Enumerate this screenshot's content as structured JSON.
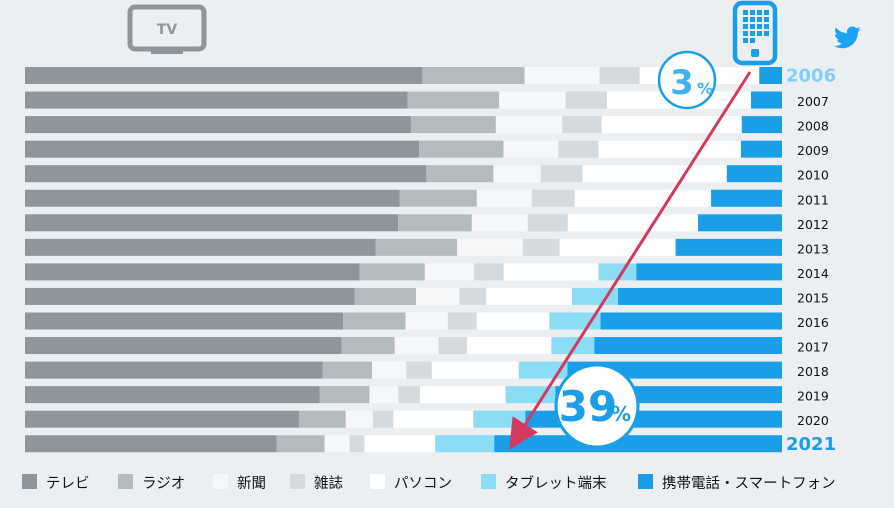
{
  "chart_data": {
    "type": "bar",
    "stacked": true,
    "normalized": true,
    "categories": [
      "2006",
      "2007",
      "2008",
      "2009",
      "2010",
      "2011",
      "2012",
      "2013",
      "2014",
      "2015",
      "2016",
      "2017",
      "2018",
      "2019",
      "2020",
      "2021"
    ],
    "series": [
      {
        "name": "テレビ",
        "color": "#8e969c",
        "values": [
          52.5,
          51.8,
          51.8,
          51.8,
          50.9,
          47.0,
          46.7,
          43.8,
          41.6,
          40.8,
          39.8,
          39.8,
          37.3,
          36.8,
          36.3,
          34.1
        ]
      },
      {
        "name": "ラジオ",
        "color": "#b4bbbf",
        "values": [
          13.5,
          12.4,
          11.4,
          11.1,
          8.5,
          9.7,
          9.2,
          10.2,
          8.1,
          7.6,
          7.8,
          6.7,
          6.2,
          6.2,
          6.2,
          6.5
        ]
      },
      {
        "name": "新聞",
        "color": "#f6f7f8",
        "values": [
          9.9,
          9.0,
          8.9,
          7.2,
          6.0,
          6.9,
          7.0,
          8.2,
          6.1,
          5.4,
          5.3,
          5.5,
          4.3,
          3.6,
          3.6,
          3.4
        ]
      },
      {
        "name": "雑誌",
        "color": "#d4dadd",
        "values": [
          5.3,
          5.6,
          5.3,
          5.3,
          5.3,
          5.4,
          5.0,
          4.6,
          3.7,
          3.3,
          3.6,
          3.6,
          3.2,
          2.7,
          2.7,
          2.0
        ]
      },
      {
        "name": "パソコン",
        "color": "#ffffff",
        "values": [
          15.8,
          19.5,
          18.8,
          18.7,
          18.3,
          17.1,
          16.3,
          14.5,
          11.8,
          10.6,
          9.1,
          10.6,
          10.9,
          10.7,
          10.6,
          9.6
        ]
      },
      {
        "name": "タブレット端末",
        "color": "#8bdcf5",
        "values": [
          0,
          0,
          0,
          0,
          0,
          0,
          0,
          0,
          4.7,
          5.7,
          6.4,
          5.4,
          6.1,
          6.2,
          6.9,
          8.0
        ]
      },
      {
        "name": "携帯電話・スマートフォン",
        "color": "#1a9ee8",
        "values": [
          3.0,
          4.2,
          5.4,
          5.4,
          7.0,
          8.9,
          10.5,
          13.3,
          18.1,
          20.3,
          22.7,
          23.6,
          26.9,
          28.3,
          34.0,
          39.0
        ]
      }
    ],
    "legend_position": "bottom",
    "annotations": [
      {
        "text": "3",
        "unit": "%",
        "year": "2006"
      },
      {
        "text": "39",
        "unit": "%",
        "year": "2021"
      }
    ],
    "highlight_years": [
      "2006",
      "2021"
    ],
    "icons": [
      "tv-icon",
      "smartphone-icon",
      "twitter-bird-icon"
    ],
    "tv_icon_label": "TV",
    "arrow_color": "#d23a5f",
    "accent_color": "#1a9ee8"
  }
}
